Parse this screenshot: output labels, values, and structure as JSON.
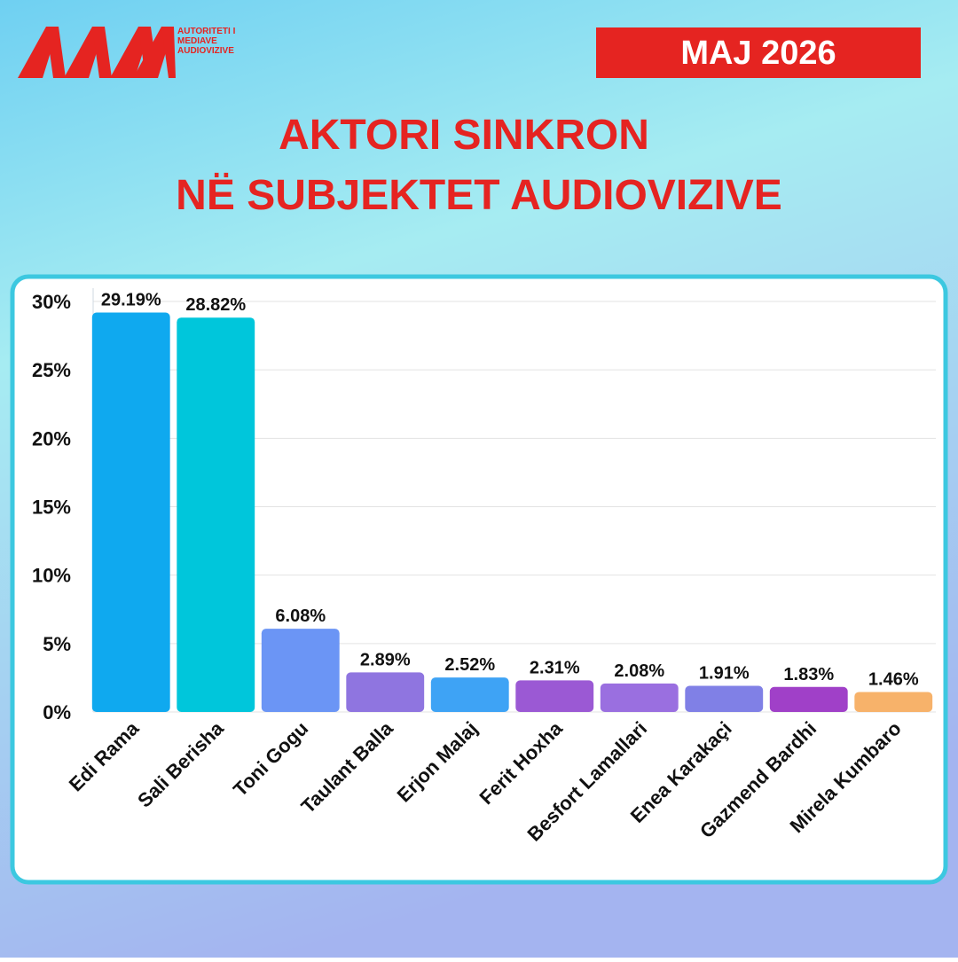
{
  "header": {
    "logo_text": [
      "AUTORITETI I",
      "MEDIAVE",
      "AUDIOVIZIVE"
    ],
    "date": "MAJ 2026"
  },
  "chart_data": {
    "type": "bar",
    "title": [
      "AKTORI SINKRON",
      "NË SUBJEKTET AUDIOVIZIVE"
    ],
    "categories": [
      "Edi Rama",
      "Sali Berisha",
      "Toni Gogu",
      "Taulant Balla",
      "Erjon Malaj",
      "Ferit Hoxha",
      "Besfort Lamallari",
      "Enea Karakaçi",
      "Gazmend Bardhi",
      "Mirela Kumbaro"
    ],
    "values": [
      29.19,
      28.82,
      6.08,
      2.89,
      2.52,
      2.31,
      2.08,
      1.91,
      1.83,
      1.46
    ],
    "value_labels": [
      "29.19%",
      "28.82%",
      "6.08%",
      "2.89%",
      "2.52%",
      "2.31%",
      "2.08%",
      "1.91%",
      "1.83%",
      "1.46%"
    ],
    "colors": [
      "#0fa9ef",
      "#00c6db",
      "#6b95f5",
      "#8f75e0",
      "#3ea3f5",
      "#9b59d4",
      "#9a6fe0",
      "#8080e6",
      "#a040c8",
      "#f7b26a"
    ],
    "ylim": [
      0,
      30
    ],
    "yticks": [
      {
        "value": 0,
        "label": "0%"
      },
      {
        "value": 5,
        "label": "5%"
      },
      {
        "value": 10,
        "label": "10%"
      },
      {
        "value": 15,
        "label": "15%"
      },
      {
        "value": 20,
        "label": "20%"
      },
      {
        "value": 25,
        "label": "25%"
      },
      {
        "value": 30,
        "label": "30%"
      }
    ],
    "grid": true
  }
}
